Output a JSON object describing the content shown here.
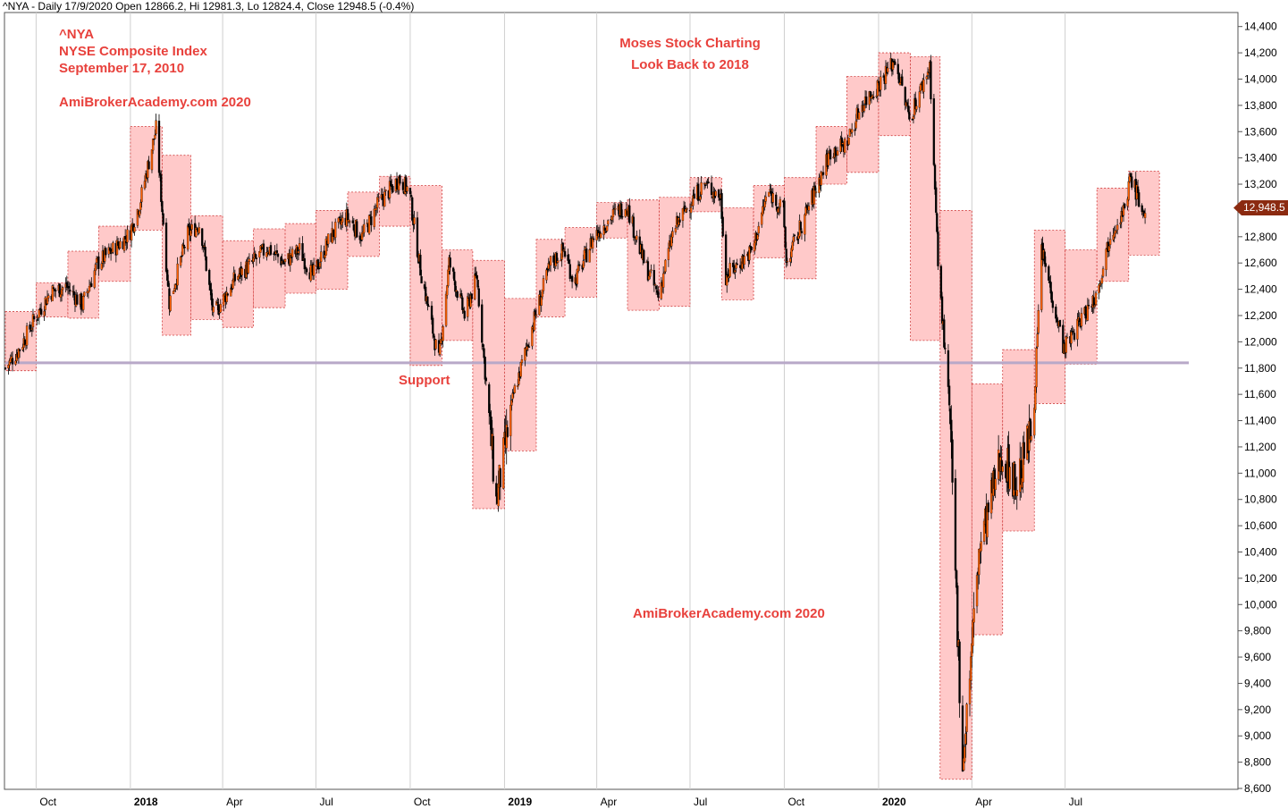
{
  "header": {
    "info": "^NYA - Daily 17/9/2020 Open 12866.2, Hi 12981.3, Lo 12824.4, Close 12948.5 (-0.4%)"
  },
  "annotations": {
    "ticker": "^NYA",
    "index_name": "NYSE Composite Index",
    "date": "September 17, 2010",
    "site_top": "AmiBrokerAcademy.com  2020",
    "title_line1": "Moses Stock Charting",
    "title_line2": "Look Back to 2018",
    "support": "Support",
    "site_bottom": "AmiBrokerAcademy.com  2020"
  },
  "last_price": "12,948.5",
  "colors": {
    "box_fill": "#ffc0c0",
    "box_border": "#d04040",
    "annotation": "#e8413c",
    "support_line": "#b8a8c8",
    "badge": "#8b2a10",
    "candle_down": "#000000",
    "candle_up": "#ff6000"
  },
  "chart_data": {
    "type": "candlestick",
    "instrument": "^NYA",
    "ylim": [
      8600,
      14500
    ],
    "y_ticks": [
      "14,400",
      "14,200",
      "14,000",
      "13,800",
      "13,600",
      "13,400",
      "13,200",
      "13,000",
      "12,800",
      "12,600",
      "12,400",
      "12,200",
      "12,000",
      "11,800",
      "11,600",
      "11,400",
      "11,200",
      "11,000",
      "10,800",
      "10,600",
      "10,400",
      "10,200",
      "10,000",
      "9,800",
      "9,600",
      "9,400",
      "9,200",
      "9,000",
      "8,800",
      "8,600"
    ],
    "x_ticks": [
      {
        "label": "Oct",
        "date": "2017-10-01",
        "bold": false
      },
      {
        "label": "2018",
        "date": "2018-01-01",
        "bold": true
      },
      {
        "label": "Apr",
        "date": "2018-04-01",
        "bold": false
      },
      {
        "label": "Jul",
        "date": "2018-07-01",
        "bold": false
      },
      {
        "label": "Oct",
        "date": "2018-10-01",
        "bold": false
      },
      {
        "label": "2019",
        "date": "2019-01-01",
        "bold": true
      },
      {
        "label": "Apr",
        "date": "2019-04-01",
        "bold": false
      },
      {
        "label": "Jul",
        "date": "2019-07-01",
        "bold": false
      },
      {
        "label": "Oct",
        "date": "2019-10-01",
        "bold": false
      },
      {
        "label": "2020",
        "date": "2020-01-01",
        "bold": true
      },
      {
        "label": "Apr",
        "date": "2020-04-01",
        "bold": false
      },
      {
        "label": "Jul",
        "date": "2020-07-01",
        "bold": false
      }
    ],
    "support_level": 11840,
    "last_close": 12948.5,
    "monthly_range_boxes": [
      {
        "month": "2017-09",
        "low": 11780,
        "high": 12230
      },
      {
        "month": "2017-10",
        "low": 12190,
        "high": 12450
      },
      {
        "month": "2017-11",
        "low": 12180,
        "high": 12690
      },
      {
        "month": "2017-12",
        "low": 12460,
        "high": 12880
      },
      {
        "month": "2018-01",
        "low": 12850,
        "high": 13640
      },
      {
        "month": "2018-02",
        "low": 12050,
        "high": 13420
      },
      {
        "month": "2018-03",
        "low": 12170,
        "high": 12960
      },
      {
        "month": "2018-04",
        "low": 12110,
        "high": 12770
      },
      {
        "month": "2018-05",
        "low": 12260,
        "high": 12860
      },
      {
        "month": "2018-06",
        "low": 12370,
        "high": 12900
      },
      {
        "month": "2018-07",
        "low": 12400,
        "high": 13000
      },
      {
        "month": "2018-08",
        "low": 12650,
        "high": 13140
      },
      {
        "month": "2018-09",
        "low": 12880,
        "high": 13260
      },
      {
        "month": "2018-10",
        "low": 11820,
        "high": 13190
      },
      {
        "month": "2018-11",
        "low": 12010,
        "high": 12700
      },
      {
        "month": "2018-12",
        "low": 10730,
        "high": 12620
      },
      {
        "month": "2019-01",
        "low": 11170,
        "high": 12330
      },
      {
        "month": "2019-02",
        "low": 12190,
        "high": 12780
      },
      {
        "month": "2019-03",
        "low": 12340,
        "high": 12870
      },
      {
        "month": "2019-04",
        "low": 12790,
        "high": 13060
      },
      {
        "month": "2019-05",
        "low": 12240,
        "high": 13080
      },
      {
        "month": "2019-06",
        "low": 12270,
        "high": 13100
      },
      {
        "month": "2019-07",
        "low": 12990,
        "high": 13250
      },
      {
        "month": "2019-08",
        "low": 12320,
        "high": 13020
      },
      {
        "month": "2019-09",
        "low": 12640,
        "high": 13190
      },
      {
        "month": "2019-10",
        "low": 12480,
        "high": 13250
      },
      {
        "month": "2019-11",
        "low": 13200,
        "high": 13640
      },
      {
        "month": "2019-12",
        "low": 13290,
        "high": 14020
      },
      {
        "month": "2020-01",
        "low": 13570,
        "high": 14200
      },
      {
        "month": "2020-02",
        "low": 12010,
        "high": 14170
      },
      {
        "month": "2020-03",
        "low": 8670,
        "high": 13000
      },
      {
        "month": "2020-04",
        "low": 9770,
        "high": 11680
      },
      {
        "month": "2020-05",
        "low": 10560,
        "high": 11940
      },
      {
        "month": "2020-06",
        "low": 11530,
        "high": 12850
      },
      {
        "month": "2020-07",
        "low": 11830,
        "high": 12700
      },
      {
        "month": "2020-08",
        "low": 12460,
        "high": 13170
      },
      {
        "month": "2020-09",
        "low": 12660,
        "high": 13300
      }
    ],
    "close_path": [
      [
        "2017-09-01",
        11800
      ],
      [
        "2017-09-15",
        11950
      ],
      [
        "2017-09-30",
        12180
      ],
      [
        "2017-10-15",
        12380
      ],
      [
        "2017-10-31",
        12420
      ],
      [
        "2017-11-15",
        12280
      ],
      [
        "2017-11-30",
        12600
      ],
      [
        "2017-12-15",
        12700
      ],
      [
        "2017-12-31",
        12820
      ],
      [
        "2018-01-10",
        13050
      ],
      [
        "2018-01-26",
        13620
      ],
      [
        "2018-02-08",
        12300
      ],
      [
        "2018-02-26",
        12820
      ],
      [
        "2018-03-10",
        12900
      ],
      [
        "2018-03-23",
        12200
      ],
      [
        "2018-04-15",
        12500
      ],
      [
        "2018-04-30",
        12600
      ],
      [
        "2018-05-15",
        12720
      ],
      [
        "2018-05-31",
        12600
      ],
      [
        "2018-06-15",
        12700
      ],
      [
        "2018-06-28",
        12500
      ],
      [
        "2018-07-15",
        12800
      ],
      [
        "2018-07-31",
        12950
      ],
      [
        "2018-08-15",
        12800
      ],
      [
        "2018-08-31",
        13050
      ],
      [
        "2018-09-20",
        13240
      ],
      [
        "2018-09-30",
        13150
      ],
      [
        "2018-10-11",
        12550
      ],
      [
        "2018-10-29",
        11850
      ],
      [
        "2018-11-08",
        12600
      ],
      [
        "2018-11-23",
        12200
      ],
      [
        "2018-12-05",
        12500
      ],
      [
        "2018-12-24",
        10780
      ],
      [
        "2019-01-10",
        11600
      ],
      [
        "2019-01-31",
        12200
      ],
      [
        "2019-02-15",
        12600
      ],
      [
        "2019-02-28",
        12700
      ],
      [
        "2019-03-10",
        12450
      ],
      [
        "2019-03-29",
        12800
      ],
      [
        "2019-04-15",
        12950
      ],
      [
        "2019-04-30",
        13050
      ],
      [
        "2019-05-15",
        12650
      ],
      [
        "2019-05-31",
        12350
      ],
      [
        "2019-06-15",
        12850
      ],
      [
        "2019-06-30",
        13050
      ],
      [
        "2019-07-15",
        13200
      ],
      [
        "2019-07-31",
        13100
      ],
      [
        "2019-08-05",
        12500
      ],
      [
        "2019-08-31",
        12700
      ],
      [
        "2019-09-15",
        13150
      ],
      [
        "2019-09-30",
        13000
      ],
      [
        "2019-10-03",
        12600
      ],
      [
        "2019-10-31",
        13150
      ],
      [
        "2019-11-15",
        13450
      ],
      [
        "2019-11-30",
        13500
      ],
      [
        "2019-12-15",
        13800
      ],
      [
        "2019-12-31",
        13950
      ],
      [
        "2020-01-17",
        14150
      ],
      [
        "2020-01-31",
        13700
      ],
      [
        "2020-02-20",
        14100
      ],
      [
        "2020-02-28",
        12600
      ],
      [
        "2020-03-10",
        11500
      ],
      [
        "2020-03-23",
        8780
      ],
      [
        "2020-04-08",
        10400
      ],
      [
        "2020-04-30",
        11150
      ],
      [
        "2020-05-15",
        10900
      ],
      [
        "2020-05-31",
        11400
      ],
      [
        "2020-06-08",
        12700
      ],
      [
        "2020-06-30",
        11950
      ],
      [
        "2020-07-15",
        12150
      ],
      [
        "2020-07-31",
        12350
      ],
      [
        "2020-08-15",
        12850
      ],
      [
        "2020-08-31",
        13050
      ],
      [
        "2020-09-02",
        13280
      ],
      [
        "2020-09-17",
        12948.5
      ]
    ]
  }
}
